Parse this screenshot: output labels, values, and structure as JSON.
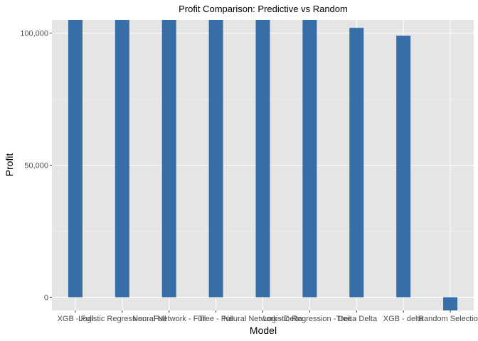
{
  "colors": {
    "panel_background": "#e5e5e5",
    "grid_major": "#ffffff",
    "grid_minor": "#f2f2f2",
    "bar_fill": "#376ea8",
    "tick_text": "#4d4d4d",
    "text": "#000000"
  },
  "chart_data": {
    "type": "bar",
    "title": "Profit Comparison: Predictive vs Random",
    "xlabel": "Model",
    "ylabel": "Profit",
    "ylim": [
      -5000,
      105000
    ],
    "ytick_values": [
      0,
      50000,
      100000
    ],
    "ytick_labels": [
      "0",
      "50,000",
      "100,000"
    ],
    "grid": true,
    "categories": [
      "XGB - Full",
      "Logistic Regression - Full",
      "Neural Network - Full",
      "Tree - Full",
      "Neural Network - Delta",
      "Logistic Regression - Delta",
      "Tree - Delta",
      "XGB - delta",
      "Random Selection"
    ],
    "values": [
      105000,
      105000,
      105000,
      105000,
      105000,
      105000,
      102000,
      99000,
      -5000
    ]
  }
}
